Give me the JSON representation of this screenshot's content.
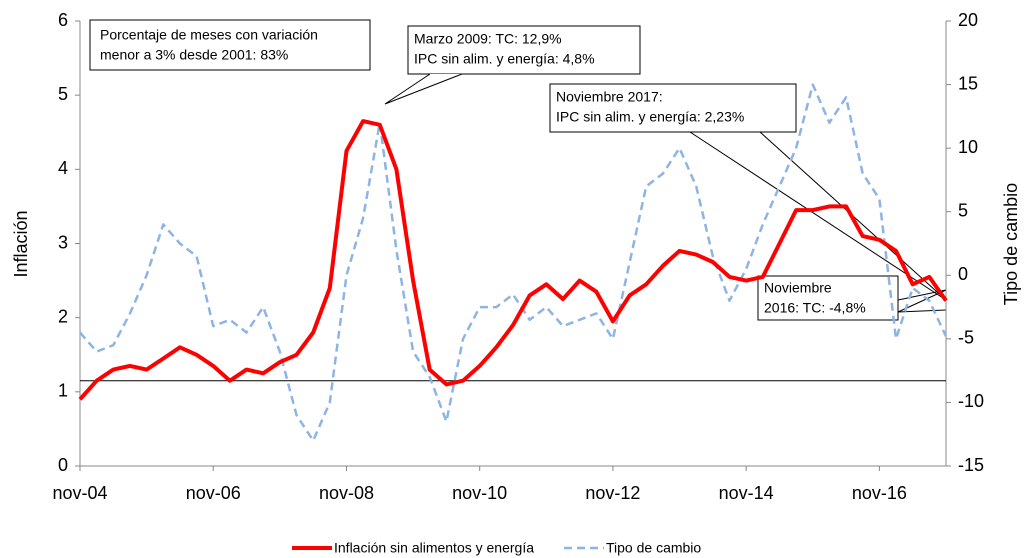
{
  "chart_data": {
    "type": "line",
    "y_label": "Inflación",
    "y2_label": "Tipo de cambio",
    "categories": [
      "nov-04",
      null,
      null,
      null,
      null,
      null,
      null,
      null,
      "nov-06",
      null,
      null,
      null,
      null,
      null,
      null,
      null,
      "nov-08",
      null,
      null,
      null,
      null,
      null,
      null,
      null,
      "nov-10",
      null,
      null,
      null,
      null,
      null,
      null,
      null,
      "nov-12",
      null,
      null,
      null,
      null,
      null,
      null,
      null,
      "nov-14",
      null,
      null,
      null,
      null,
      null,
      null,
      null,
      "nov-16",
      null,
      null,
      null,
      null
    ],
    "series": [
      {
        "name": "Inflación sin alimentos y energía",
        "color": "#ff0000",
        "dash": false,
        "axis": "y",
        "values": [
          0.9,
          1.15,
          1.3,
          1.35,
          1.3,
          1.45,
          1.6,
          1.5,
          1.35,
          1.15,
          1.3,
          1.25,
          1.4,
          1.5,
          1.8,
          2.4,
          4.25,
          4.65,
          4.6,
          4.0,
          2.5,
          1.3,
          1.1,
          1.15,
          1.35,
          1.6,
          1.9,
          2.3,
          2.45,
          2.25,
          2.5,
          2.35,
          1.95,
          2.3,
          2.45,
          2.7,
          2.9,
          2.85,
          2.75,
          2.55,
          2.5,
          2.55,
          3.0,
          3.45,
          3.45,
          3.5,
          3.5,
          3.1,
          3.05,
          2.9,
          2.45,
          2.55,
          2.23
        ]
      },
      {
        "name": "Tipo de cambio",
        "color": "#8eb4e3",
        "dash": true,
        "axis": "y2",
        "values": [
          -4.5,
          -6,
          -5.5,
          -3,
          0,
          4,
          2.5,
          1.5,
          -4,
          -3.5,
          -4.5,
          -2.5,
          -6,
          -11,
          -13,
          -10,
          0,
          4.5,
          12,
          2,
          -6,
          -8,
          -11.5,
          -5,
          -2.5,
          -2.5,
          -1.5,
          -3.5,
          -2.5,
          -4,
          -3.5,
          -3,
          -5,
          1,
          7,
          8,
          10,
          7,
          1.5,
          -2,
          0.5,
          4,
          7,
          10,
          15,
          12,
          14,
          8,
          6,
          -5,
          -1,
          -2,
          -4.8
        ]
      }
    ],
    "ylim": [
      0,
      6
    ],
    "yticks": [
      0,
      1,
      2,
      3,
      4,
      5,
      6
    ],
    "y2lim": [
      -15,
      20
    ],
    "y2ticks": [
      -15,
      -10,
      -5,
      0,
      5,
      10,
      15,
      20
    ],
    "hline": 1.15,
    "annotations": [
      [
        "Porcentaje de meses con variación",
        "menor a 3% desde 2001: 83%"
      ],
      [
        "Marzo 2009: TC: 12,9%",
        "IPC sin alim. y energía: 4,8%"
      ],
      [
        "Noviembre 2017:",
        "IPC sin alim. y energía: 2,23%"
      ],
      [
        "Noviembre",
        "2016: TC: -4,8%"
      ]
    ]
  }
}
